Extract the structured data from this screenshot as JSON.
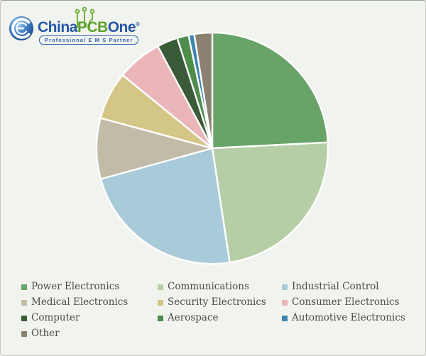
{
  "page": {
    "background": "#F1F3EE",
    "border_color": "#C6CABF"
  },
  "logo": {
    "brand_china": "China",
    "brand_pcb": "PCB",
    "brand_one": "One",
    "registered_mark": "®",
    "tagline": "Professional  E M S  Partner",
    "blue": "#2458A8",
    "green": "#5FA32B",
    "trace_green": "#6FB43C"
  },
  "chart_data": {
    "type": "pie",
    "title": "",
    "start_angle_deg": 0,
    "direction": "clockwise",
    "separator_color": "#FFFFFF",
    "legend_position": "bottom",
    "series": [
      {
        "label": "Power Electronics",
        "value": 24.2,
        "color": "#68A368"
      },
      {
        "label": "Communications",
        "value": 23.4,
        "color": "#B5CEA6"
      },
      {
        "label": "Industrial Control",
        "value": 23.1,
        "color": "#A8CAD9"
      },
      {
        "label": "Medical Electronics",
        "value": 8.5,
        "color": "#C2BBA8"
      },
      {
        "label": "Security Electronics",
        "value": 6.7,
        "color": "#D4C687"
      },
      {
        "label": "Consumer Electronics",
        "value": 6.3,
        "color": "#EAB6BA"
      },
      {
        "label": "Computer",
        "value": 2.9,
        "color": "#3A5B37"
      },
      {
        "label": "Aerospace",
        "value": 1.6,
        "color": "#4D8C4A"
      },
      {
        "label": "Automotive Electronics",
        "value": 0.8,
        "color": "#3E85B0"
      },
      {
        "label": "Other",
        "value": 2.5,
        "color": "#8A8170"
      }
    ]
  }
}
